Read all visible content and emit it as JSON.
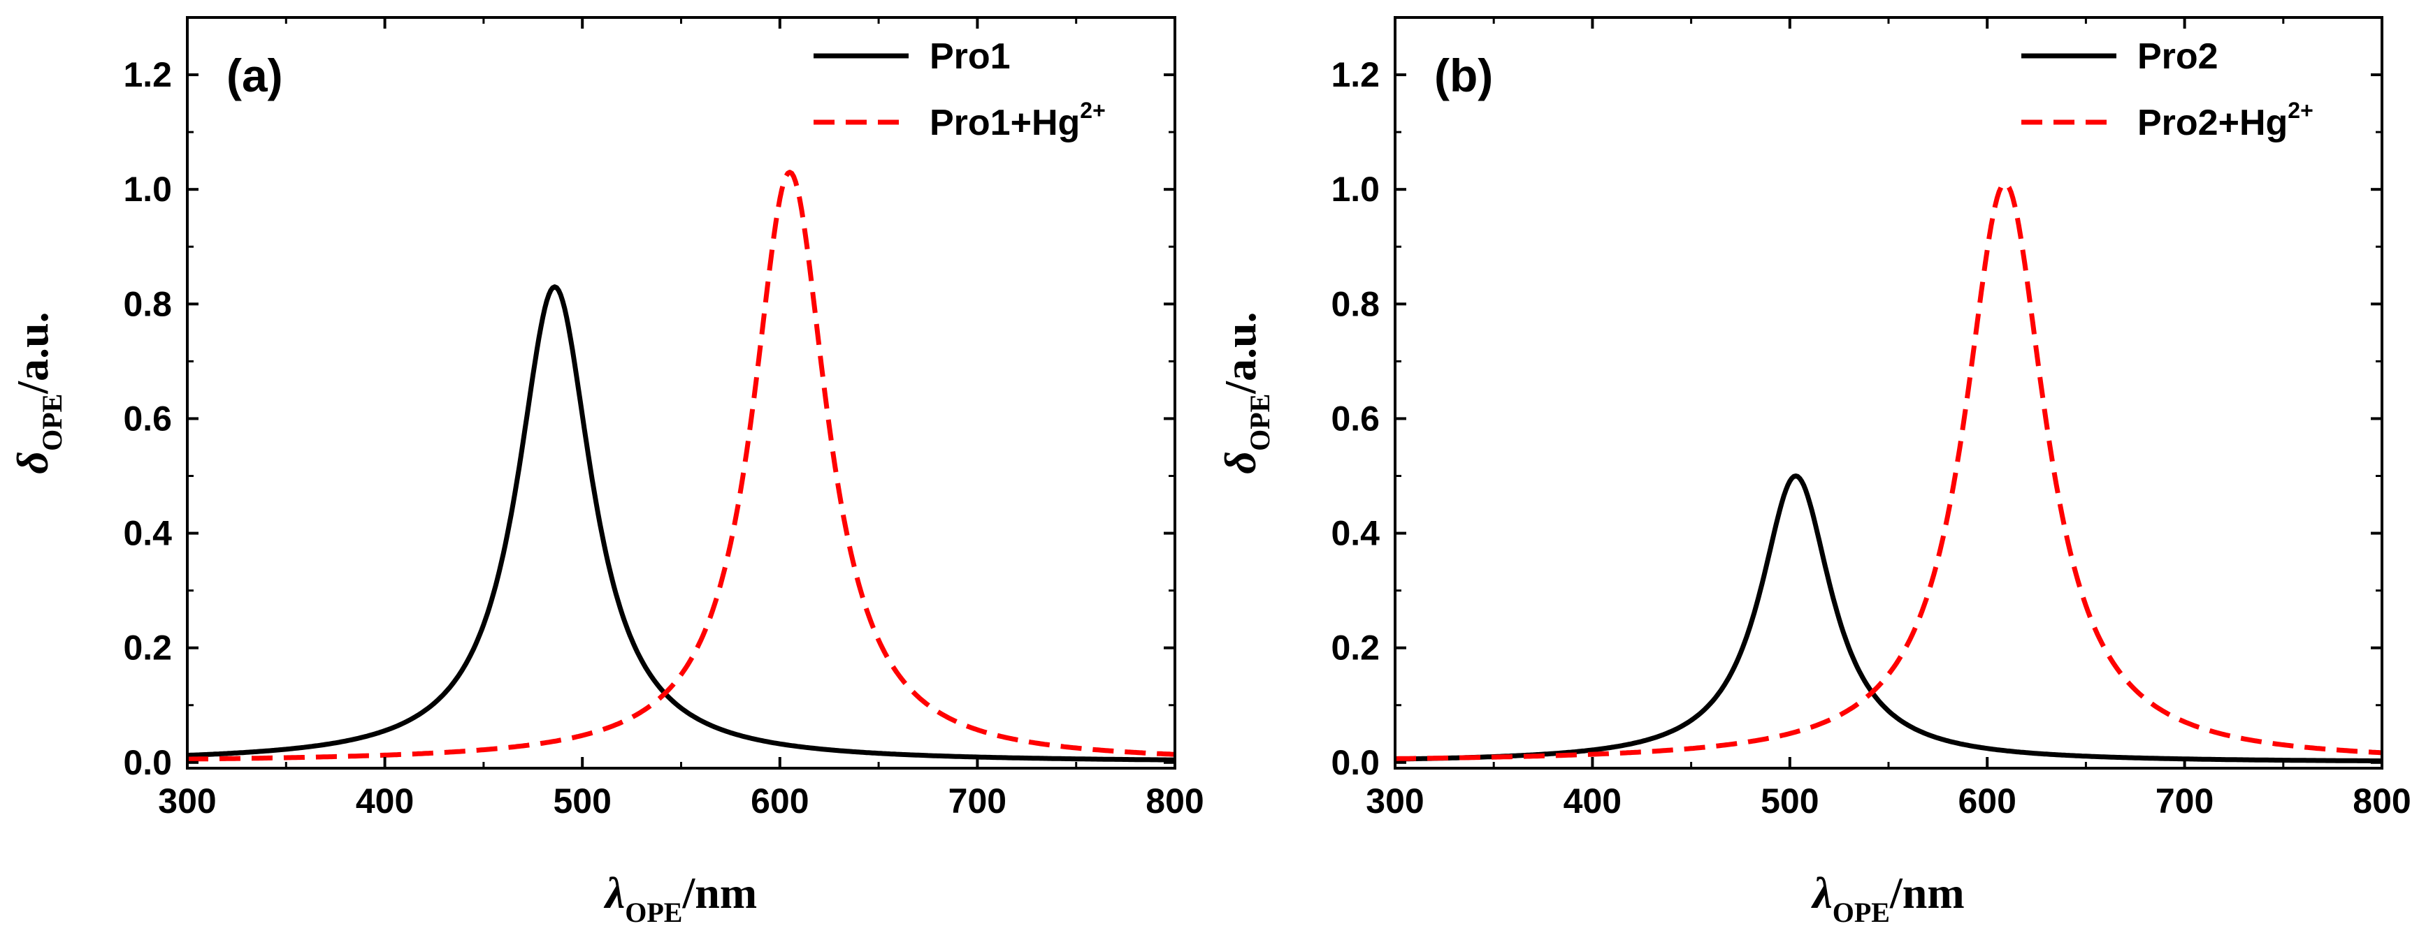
{
  "colors": {
    "series_black": "#000000",
    "series_red": "#ff0000",
    "axes": "#000000",
    "background": "#ffffff"
  },
  "chart_data": [
    {
      "type": "line",
      "panel_label": "(a)",
      "xlabel": {
        "symbol": "λ",
        "subscript": "OPE",
        "suffix": "/nm"
      },
      "ylabel": {
        "symbol": "δ",
        "subscript": "OPE",
        "suffix": "/a.u."
      },
      "xlim": [
        300,
        800
      ],
      "ylim": [
        -0.01,
        1.3
      ],
      "xticks": [
        300,
        400,
        500,
        600,
        700,
        800
      ],
      "xtick_labels": [
        "300",
        "400",
        "500",
        "600",
        "700",
        "800"
      ],
      "yticks": [
        0.0,
        0.2,
        0.4,
        0.6,
        0.8,
        1.0,
        1.2
      ],
      "ytick_labels": [
        "0.0",
        "0.2",
        "0.4",
        "0.6",
        "0.8",
        "1.0",
        "1.2"
      ],
      "grid": false,
      "legend_position": "top-right",
      "series": [
        {
          "name": "Pro1",
          "legend_base": "Pro1",
          "legend_sup": "",
          "style": "solid",
          "color": "#000000",
          "peak_x": 486,
          "peak_y": 0.83,
          "hwhm": 23,
          "baseline": 0.0
        },
        {
          "name": "Pro1+Hg2+",
          "legend_base": "Pro1+Hg",
          "legend_sup": "2+",
          "style": "dashed",
          "color": "#ff0000",
          "peak_x": 605,
          "peak_y": 1.03,
          "hwhm": 23,
          "baseline": 0.0
        }
      ]
    },
    {
      "type": "line",
      "panel_label": "(b)",
      "xlabel": {
        "symbol": "λ",
        "subscript": "OPE",
        "suffix": "/nm"
      },
      "ylabel": {
        "symbol": "δ",
        "subscript": "OPE",
        "suffix": "/a.u."
      },
      "xlim": [
        300,
        800
      ],
      "ylim": [
        -0.01,
        1.3
      ],
      "xticks": [
        300,
        400,
        500,
        600,
        700,
        800
      ],
      "xtick_labels": [
        "300",
        "400",
        "500",
        "600",
        "700",
        "800"
      ],
      "yticks": [
        0.0,
        0.2,
        0.4,
        0.6,
        0.8,
        1.0,
        1.2
      ],
      "ytick_labels": [
        "0.0",
        "0.2",
        "0.4",
        "0.6",
        "0.8",
        "1.0",
        "1.2"
      ],
      "grid": false,
      "legend_position": "top-right",
      "series": [
        {
          "name": "Pro2",
          "legend_base": "Pro2",
          "legend_sup": "",
          "style": "solid",
          "color": "#000000",
          "peak_x": 503,
          "peak_y": 0.5,
          "hwhm": 22,
          "baseline": 0.0
        },
        {
          "name": "Pro2+Hg2+",
          "legend_base": "Pro2+Hg",
          "legend_sup": "2+",
          "style": "dashed",
          "color": "#ff0000",
          "peak_x": 609,
          "peak_y": 1.01,
          "hwhm": 25,
          "baseline": 0.0
        }
      ]
    }
  ]
}
